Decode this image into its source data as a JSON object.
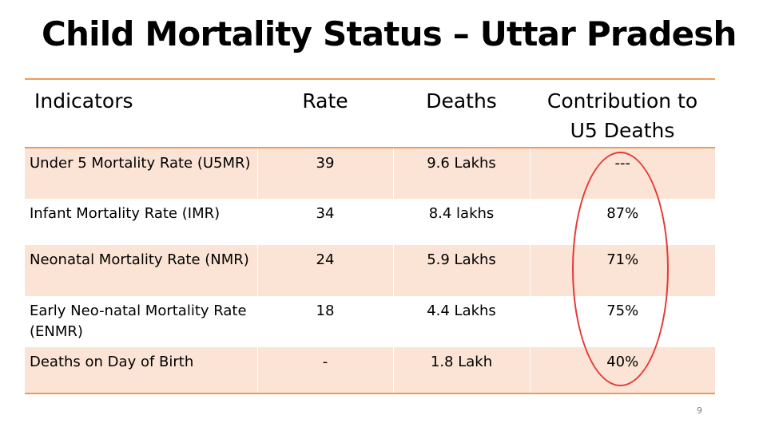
{
  "title": "Child Mortality Status – Uttar Pradesh",
  "table": {
    "headers": {
      "indicators": "Indicators",
      "rate": "Rate",
      "deaths": "Deaths",
      "contribution_line1": "Contribution to",
      "contribution_line2": "U5 Deaths"
    },
    "rows": [
      {
        "indicator": "Under 5 Mortality Rate (U5MR)",
        "rate": "39",
        "deaths": "9.6 Lakhs",
        "contribution": "---"
      },
      {
        "indicator": "Infant Mortality Rate (IMR)",
        "rate": "34",
        "deaths": "8.4 lakhs",
        "contribution": "87%"
      },
      {
        "indicator": "Neonatal Mortality Rate (NMR)",
        "rate": "24",
        "deaths": "5.9 Lakhs",
        "contribution": "71%"
      },
      {
        "indicator": "Early Neo-natal Mortality Rate (ENMR)",
        "rate": "18",
        "deaths": "4.4 Lakhs",
        "contribution": "75%"
      },
      {
        "indicator": "Deaths on Day of Birth",
        "rate": "-",
        "deaths": "1.8 Lakh",
        "contribution": "40%"
      }
    ]
  },
  "highlight_color": "#e53935",
  "accent_color": "#ef9a5b",
  "row_shade_color": "#fbe4d5",
  "page_number": "9"
}
